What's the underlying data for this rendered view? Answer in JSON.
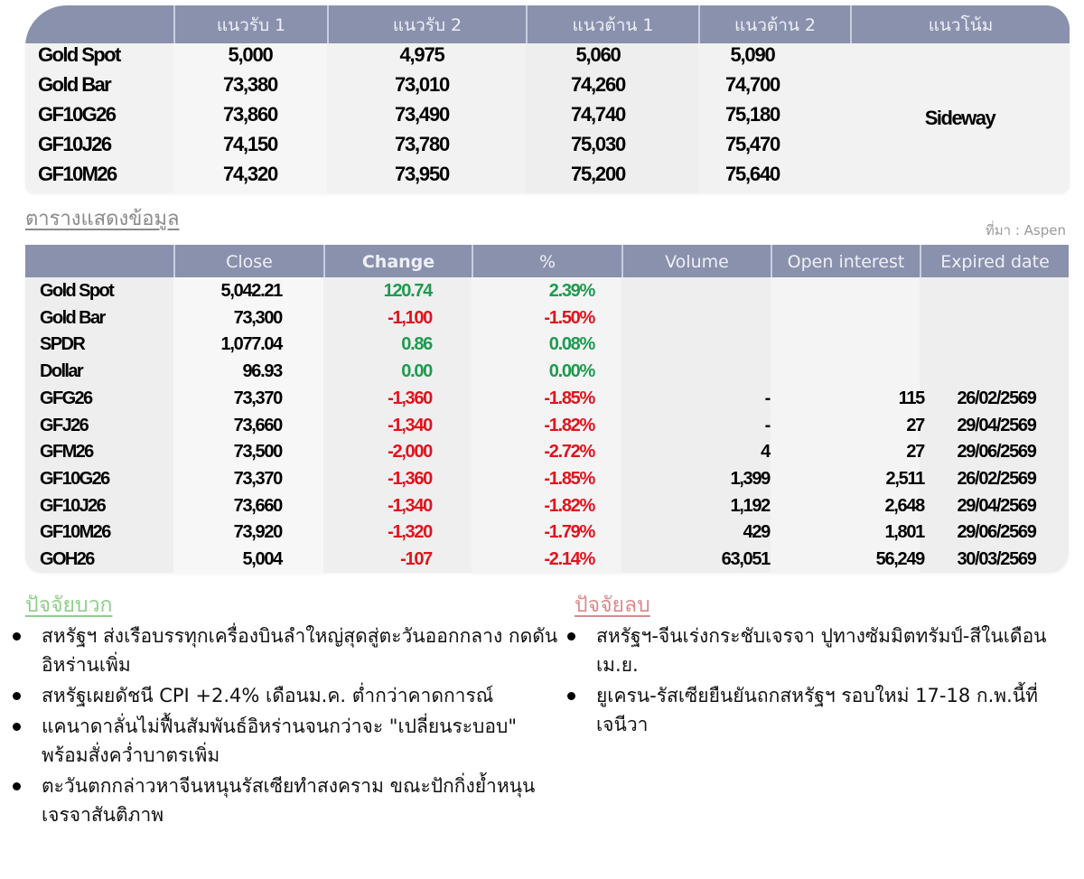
{
  "levels_table": {
    "headers": [
      "",
      "แนวรับ 1",
      "แนวรับ 2",
      "แนวต้าน 1",
      "แนวต้าน 2",
      "แนวโน้ม"
    ],
    "rows": [
      {
        "name": "Gold Spot",
        "support1": "5,000",
        "support2": "4,975",
        "resistance1": "5,060",
        "resistance2": "5,090"
      },
      {
        "name": "Gold Bar",
        "support1": "73,380",
        "support2": "73,010",
        "resistance1": "74,260",
        "resistance2": "74,700"
      },
      {
        "name": "GF10G26",
        "support1": "73,860",
        "support2": "73,490",
        "resistance1": "74,740",
        "resistance2": "75,180"
      },
      {
        "name": "GF10J26",
        "support1": "74,150",
        "support2": "73,780",
        "resistance1": "75,030",
        "resistance2": "75,470"
      },
      {
        "name": "GF10M26",
        "support1": "74,320",
        "support2": "73,950",
        "resistance1": "75,200",
        "resistance2": "75,640"
      }
    ],
    "trend": "Sideway"
  },
  "caption": "ตารางแสดงข้อมูล",
  "source": "ที่มา : Aspen",
  "data_table": {
    "headers": [
      "",
      "Close",
      "Change",
      "%",
      "Volume",
      "Open interest",
      "Expired date"
    ],
    "rows": [
      {
        "name": "Gold Spot",
        "close": "5,042.21",
        "change": "120.74",
        "pct": "2.39%",
        "dir": "pos",
        "volume": "",
        "oi": "",
        "expiry": ""
      },
      {
        "name": "Gold Bar",
        "close": "73,300",
        "change": "-1,100",
        "pct": "-1.50%",
        "dir": "neg",
        "volume": "",
        "oi": "",
        "expiry": ""
      },
      {
        "name": "SPDR",
        "close": "1,077.04",
        "change": "0.86",
        "pct": "0.08%",
        "dir": "pos",
        "volume": "",
        "oi": "",
        "expiry": ""
      },
      {
        "name": "Dollar",
        "close": "96.93",
        "change": "0.00",
        "pct": "0.00%",
        "dir": "pos",
        "volume": "",
        "oi": "",
        "expiry": ""
      },
      {
        "name": "GFG26",
        "close": "73,370",
        "change": "-1,360",
        "pct": "-1.85%",
        "dir": "neg",
        "volume": "-",
        "oi": "115",
        "expiry": "26/02/2569"
      },
      {
        "name": "GFJ26",
        "close": "73,660",
        "change": "-1,340",
        "pct": "-1.82%",
        "dir": "neg",
        "volume": "-",
        "oi": "27",
        "expiry": "29/04/2569"
      },
      {
        "name": "GFM26",
        "close": "73,500",
        "change": "-2,000",
        "pct": "-2.72%",
        "dir": "neg",
        "volume": "4",
        "oi": "27",
        "expiry": "29/06/2569"
      },
      {
        "name": "GF10G26",
        "close": "73,370",
        "change": "-1,360",
        "pct": "-1.85%",
        "dir": "neg",
        "volume": "1,399",
        "oi": "2,511",
        "expiry": "26/02/2569"
      },
      {
        "name": "GF10J26",
        "close": "73,660",
        "change": "-1,340",
        "pct": "-1.82%",
        "dir": "neg",
        "volume": "1,192",
        "oi": "2,648",
        "expiry": "29/04/2569"
      },
      {
        "name": "GF10M26",
        "close": "73,920",
        "change": "-1,320",
        "pct": "-1.79%",
        "dir": "neg",
        "volume": "429",
        "oi": "1,801",
        "expiry": "29/06/2569"
      },
      {
        "name": "GOH26",
        "close": "5,004",
        "change": "-107",
        "pct": "-2.14%",
        "dir": "neg",
        "volume": "63,051",
        "oi": "56,249",
        "expiry": "30/03/2569"
      }
    ]
  },
  "positive_factors": {
    "title": "ปัจจัยบวก",
    "items": [
      "สหรัฐฯ ส่งเรือบรรทุกเครื่องบินลำใหญ่สุดสู่ตะวันออกกลาง กดดันอิหร่านเพิ่ม",
      "สหรัฐเผยดัชนี CPI +2.4% เดือนม.ค. ต่ำกว่าคาดการณ์",
      "แคนาดาลั่นไม่ฟื้นสัมพันธ์อิหร่านจนกว่าจะ \"เปลี่ยนระบอบ\" พร้อมสั่งคว่ำบาตรเพิ่ม",
      "ตะวันตกกล่าวหาจีนหนุนรัสเซียทำสงคราม ขณะปักกิ่งย้ำหนุนเจรจาสันติภาพ"
    ]
  },
  "negative_factors": {
    "title": "ปัจจัยลบ",
    "items": [
      "สหรัฐฯ-จีนเร่งกระชับเจรจา ปูทางซัมมิตทรัมป์-สีในเดือนเม.ย.",
      "ยูเครน-รัสเซียยืนยันถกสหรัฐฯ รอบใหม่ 17-18 ก.พ.นี้ที่เจนีวา"
    ]
  },
  "colors": {
    "header_bg": "#8a91ad",
    "positive": "#1e9a4e",
    "negative": "#e0141c",
    "positive_title": "#8fcf8a",
    "negative_title": "#d88a8c"
  }
}
